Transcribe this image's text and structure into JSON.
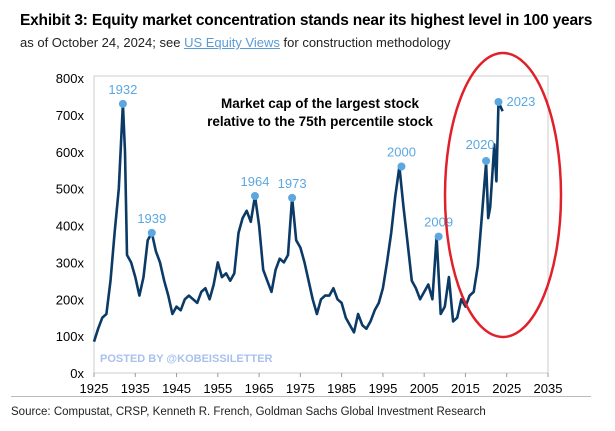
{
  "header": {
    "title": "Exhibit 3: Equity market concentration stands near its highest level in 100 years",
    "subtitle_prefix": "as of October 24, 2024; see",
    "subtitle_link": "US Equity Views",
    "subtitle_suffix": "for construction methodology"
  },
  "footer": {
    "source": "Source: Compustat, CRSP, Kenneth R. French, Goldman Sachs Global Investment Research"
  },
  "watermark": "POSTED BY @KOBEISSILETTER",
  "colors": {
    "line": "#0b3a66",
    "marker": "#5ba8e0",
    "highlight_ellipse": "#e0202a",
    "watermark": "#a9c1ef"
  },
  "chart_data": {
    "type": "line",
    "annotation": "Market cap of the largest stock relative to the 75th percentile stock",
    "annotation_lines": [
      "Market cap of the largest stock",
      "relative to the 75th percentile stock"
    ],
    "xlim": [
      1925,
      2035
    ],
    "ylim": [
      0,
      800
    ],
    "x_ticks": [
      "1925",
      "1935",
      "1945",
      "1955",
      "1965",
      "1975",
      "1985",
      "1995",
      "2005",
      "2015",
      "2025",
      "2035"
    ],
    "y_ticks": [
      "0x",
      "100x",
      "200x",
      "300x",
      "400x",
      "500x",
      "600x",
      "700x",
      "800x"
    ],
    "grid": false,
    "series": [
      {
        "x": [
          1925,
          1926,
          1927,
          1928,
          1929,
          1930,
          1931,
          1932,
          1932.5,
          1933,
          1934,
          1935,
          1936,
          1937,
          1938,
          1939,
          1940,
          1941,
          1942,
          1943,
          1944,
          1945,
          1946,
          1947,
          1948,
          1949,
          1950,
          1951,
          1952,
          1953,
          1954,
          1955,
          1956,
          1957,
          1958,
          1959,
          1960,
          1961,
          1962,
          1963,
          1964,
          1965,
          1966,
          1967,
          1968,
          1969,
          1970,
          1971,
          1972,
          1973,
          1974,
          1975,
          1976,
          1977,
          1978,
          1979,
          1980,
          1981,
          1982,
          1983,
          1984,
          1985,
          1986,
          1987,
          1988,
          1989,
          1990,
          1991,
          1992,
          1993,
          1994,
          1995,
          1996,
          1997,
          1998,
          1999,
          2000,
          2001,
          2002,
          2003,
          2004,
          2005,
          2006,
          2007,
          2008,
          2009,
          2010,
          2011,
          2012,
          2013,
          2014,
          2015,
          2016,
          2017,
          2018,
          2019,
          2020,
          2020.5,
          2021,
          2022,
          2022.5,
          2023,
          2024
        ],
        "y": [
          85,
          120,
          150,
          160,
          250,
          380,
          500,
          730,
          600,
          320,
          300,
          260,
          210,
          260,
          360,
          380,
          330,
          300,
          250,
          210,
          160,
          180,
          170,
          200,
          210,
          200,
          190,
          220,
          230,
          200,
          240,
          300,
          260,
          270,
          250,
          270,
          380,
          420,
          440,
          410,
          480,
          400,
          280,
          250,
          220,
          280,
          310,
          300,
          320,
          475,
          360,
          340,
          300,
          250,
          200,
          160,
          200,
          210,
          210,
          230,
          200,
          190,
          150,
          130,
          110,
          160,
          130,
          120,
          140,
          170,
          190,
          230,
          300,
          380,
          480,
          560,
          450,
          350,
          250,
          230,
          200,
          220,
          240,
          200,
          370,
          160,
          180,
          260,
          140,
          150,
          200,
          180,
          210,
          220,
          290,
          430,
          570,
          420,
          450,
          620,
          520,
          735,
          710
        ]
      }
    ],
    "labeled_peaks": [
      {
        "label": "1932",
        "x": 1932,
        "y": 730
      },
      {
        "label": "1939",
        "x": 1939,
        "y": 380
      },
      {
        "label": "1964",
        "x": 1964,
        "y": 480
      },
      {
        "label": "1973",
        "x": 1973,
        "y": 475
      },
      {
        "label": "2000",
        "x": 1999.5,
        "y": 560
      },
      {
        "label": "2009",
        "x": 2008.5,
        "y": 370
      },
      {
        "label": "2020",
        "x": 2020,
        "y": 575
      },
      {
        "label": "2023",
        "x": 2023,
        "y": 735
      }
    ]
  }
}
